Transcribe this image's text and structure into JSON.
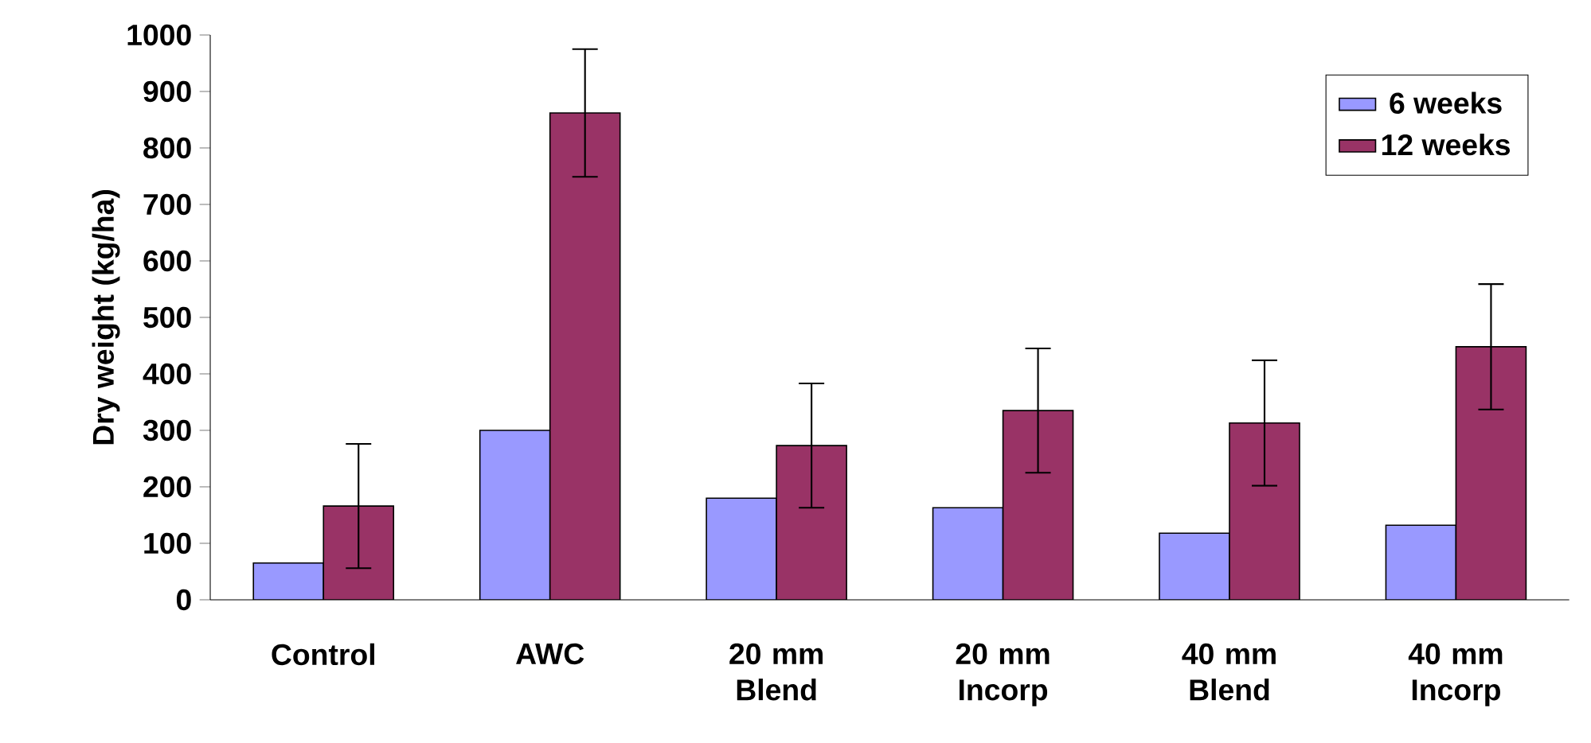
{
  "chart_data": {
    "type": "bar",
    "ylabel": "Dry weight (kg/ha)",
    "categories": [
      "Control",
      "AWC",
      "20 mm Blend",
      "20 mm Incorp",
      "40 mm Blend",
      "40 mm Incorp"
    ],
    "series": [
      {
        "name": "6 weeks",
        "color": "#9999ff",
        "values": [
          65,
          300,
          180,
          163,
          118,
          132
        ]
      },
      {
        "name": "12 weeks",
        "color": "#993366",
        "values": [
          166,
          862,
          273,
          335,
          313,
          448
        ],
        "errors": [
          110,
          113,
          110,
          110,
          111,
          111
        ]
      }
    ],
    "ylim": [
      0,
      1000
    ],
    "yticks": [
      0,
      100,
      200,
      300,
      400,
      500,
      600,
      700,
      800,
      900,
      1000
    ],
    "grid": false,
    "legend": "top right"
  }
}
